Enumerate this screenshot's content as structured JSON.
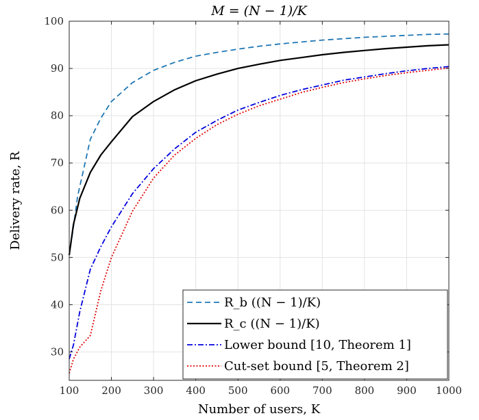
{
  "chart_data": {
    "type": "line",
    "title": "M = (N − 1)/K",
    "xlabel": "Number of users, K",
    "ylabel": "Delivery rate, R",
    "xlim": [
      100,
      1000
    ],
    "ylim": [
      24,
      100
    ],
    "xticks": [
      100,
      200,
      300,
      400,
      500,
      600,
      700,
      800,
      900,
      1000
    ],
    "yticks": [
      30,
      40,
      50,
      60,
      70,
      80,
      90,
      100
    ],
    "grid": true,
    "legend_position": "bottom-right",
    "series": [
      {
        "name": "R_b ((N − 1)/K)",
        "color": "#1f77b4",
        "style": "dashed",
        "x": [
          100,
          110,
          120,
          130,
          150,
          175,
          200,
          250,
          300,
          350,
          400,
          450,
          500,
          550,
          600,
          650,
          700,
          750,
          800,
          850,
          900,
          950,
          1000
        ],
        "y": [
          50.5,
          56.5,
          63,
          67,
          75,
          79.5,
          83,
          87,
          89.6,
          91.3,
          92.6,
          93.4,
          94.1,
          94.7,
          95.2,
          95.6,
          96.0,
          96.3,
          96.6,
          96.8,
          97.0,
          97.2,
          97.3
        ]
      },
      {
        "name": "R_c ((N − 1)/K)",
        "color": "#000000",
        "style": "solid",
        "x": [
          100,
          110,
          125,
          150,
          175,
          200,
          250,
          300,
          350,
          400,
          450,
          500,
          550,
          600,
          650,
          700,
          750,
          800,
          850,
          900,
          950,
          1000
        ],
        "y": [
          50.5,
          57,
          62.5,
          68,
          71.7,
          74.5,
          79.8,
          83.0,
          85.5,
          87.4,
          88.8,
          90.0,
          90.9,
          91.7,
          92.3,
          92.9,
          93.4,
          93.8,
          94.2,
          94.5,
          94.8,
          95.0
        ]
      },
      {
        "name": "Lower bound [10, Theorem 1]",
        "color": "#0000dd",
        "style": "dashdot",
        "x": [
          100,
          110,
          125,
          150,
          175,
          200,
          250,
          300,
          350,
          400,
          450,
          500,
          550,
          600,
          650,
          700,
          750,
          800,
          850,
          900,
          950,
          1000
        ],
        "y": [
          28.5,
          31.5,
          38.5,
          47.5,
          52.3,
          56.5,
          63.5,
          68.8,
          73.0,
          76.5,
          79.0,
          81.2,
          82.8,
          84.3,
          85.5,
          86.5,
          87.5,
          88.2,
          88.9,
          89.5,
          90.0,
          90.4
        ]
      },
      {
        "name": "Cut-set bound [5, Theorem 2]",
        "color": "#e00000",
        "style": "dotted",
        "x": [
          100,
          110,
          125,
          150,
          175,
          200,
          250,
          300,
          350,
          400,
          450,
          500,
          550,
          600,
          650,
          700,
          750,
          800,
          850,
          900,
          950,
          1000
        ],
        "y": [
          25.5,
          28.5,
          31.0,
          33.5,
          43.0,
          50.0,
          59.8,
          66.8,
          71.7,
          75.2,
          78.1,
          80.3,
          82.1,
          83.5,
          84.9,
          86.0,
          87.0,
          87.8,
          88.5,
          89.1,
          89.6,
          90.1
        ]
      }
    ]
  }
}
